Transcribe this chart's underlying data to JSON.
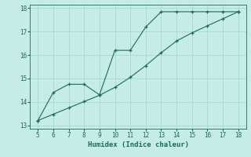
{
  "xlabel": "Humidex (Indice chaleur)",
  "bg_color": "#c5ece8",
  "grid_color": "#a8d8d2",
  "line_color": "#1a6b5a",
  "xlim": [
    4.5,
    18.5
  ],
  "ylim": [
    12.85,
    18.15
  ],
  "xticks": [
    5,
    6,
    7,
    8,
    9,
    10,
    11,
    12,
    13,
    14,
    15,
    16,
    17,
    18
  ],
  "yticks": [
    13,
    14,
    15,
    16,
    17,
    18
  ],
  "series1_x": [
    5,
    6,
    7,
    8,
    9,
    10,
    11,
    12,
    13,
    14,
    15,
    16,
    17,
    18
  ],
  "series1_y": [
    13.2,
    14.4,
    14.75,
    14.75,
    14.3,
    16.2,
    16.2,
    17.2,
    17.85,
    17.85,
    17.85,
    17.85,
    17.85,
    17.85
  ],
  "series2_x": [
    5,
    6,
    7,
    8,
    9,
    10,
    11,
    12,
    13,
    14,
    15,
    16,
    17,
    18
  ],
  "series2_y": [
    13.2,
    13.47,
    13.74,
    14.01,
    14.28,
    14.62,
    15.05,
    15.55,
    16.1,
    16.6,
    16.95,
    17.25,
    17.55,
    17.85
  ]
}
